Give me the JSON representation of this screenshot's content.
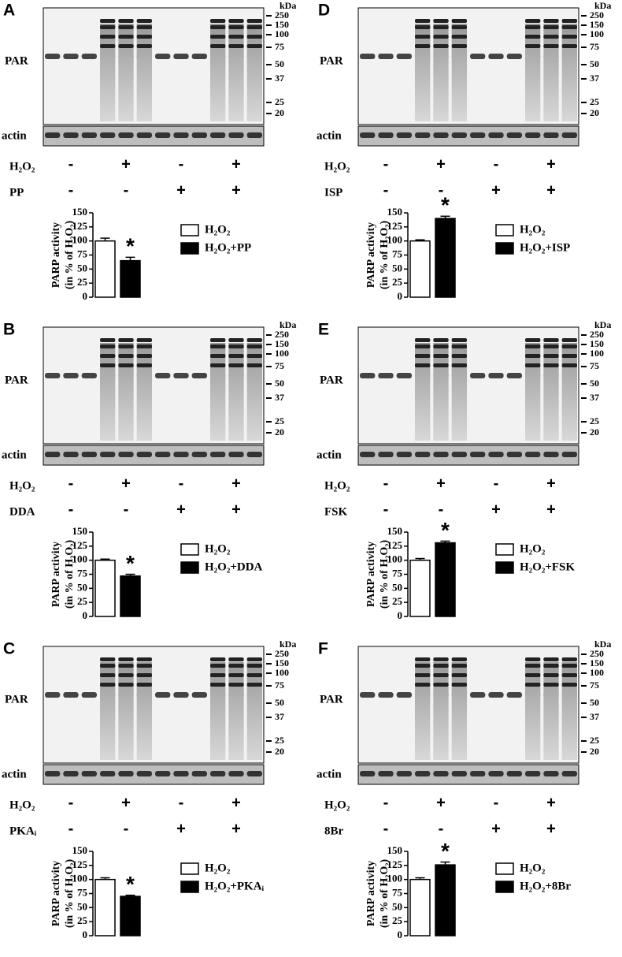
{
  "chart_data": [
    {
      "type": "bar",
      "categories": [
        null
      ],
      "series": [
        {
          "name": "H₂O₂",
          "color": "#ffffff",
          "values": [
            100
          ],
          "errors": [
            5
          ]
        },
        {
          "name": "H₂O₂+PP",
          "color": "#000000",
          "values": [
            65
          ],
          "errors": [
            6
          ]
        }
      ],
      "ylabel": [
        "PARP activity",
        "(in % of H₂O₂)"
      ],
      "ylim": [
        0,
        150
      ],
      "yticks": [
        0,
        25,
        50,
        75,
        100,
        125,
        150
      ],
      "annotations": [
        "*"
      ]
    },
    {
      "type": "bar",
      "categories": [
        null
      ],
      "series": [
        {
          "name": "H₂O₂",
          "color": "#ffffff",
          "values": [
            100
          ],
          "errors": [
            2
          ]
        },
        {
          "name": "H₂O₂+DDA",
          "color": "#000000",
          "values": [
            72
          ],
          "errors": [
            3
          ]
        }
      ],
      "ylabel": [
        "PARP activity",
        "(in % of H₂O₂)"
      ],
      "ylim": [
        0,
        150
      ],
      "yticks": [
        0,
        25,
        50,
        75,
        100,
        125,
        150
      ],
      "annotations": [
        "*"
      ]
    },
    {
      "type": "bar",
      "categories": [
        null
      ],
      "series": [
        {
          "name": "H₂O₂",
          "color": "#ffffff",
          "values": [
            100
          ],
          "errors": [
            3
          ]
        },
        {
          "name": "H₂O₂+PKAᵢ",
          "color": "#000000",
          "values": [
            70
          ],
          "errors": [
            2
          ]
        }
      ],
      "ylabel": [
        "PARP activity",
        "(in % of H₂O₂)"
      ],
      "ylim": [
        0,
        150
      ],
      "yticks": [
        0,
        25,
        50,
        75,
        100,
        125,
        150
      ],
      "annotations": [
        "*"
      ]
    },
    {
      "type": "bar",
      "categories": [
        null
      ],
      "series": [
        {
          "name": "H₂O₂",
          "color": "#ffffff",
          "values": [
            100
          ],
          "errors": [
            2
          ]
        },
        {
          "name": "H₂O₂+ISP",
          "color": "#000000",
          "values": [
            140
          ],
          "errors": [
            4
          ]
        }
      ],
      "ylabel": [
        "PARP activity",
        "(in % of H₂O₂)"
      ],
      "ylim": [
        0,
        150
      ],
      "yticks": [
        0,
        25,
        50,
        75,
        100,
        125,
        150
      ],
      "annotations": [
        "*"
      ]
    },
    {
      "type": "bar",
      "categories": [
        null
      ],
      "series": [
        {
          "name": "H₂O₂",
          "color": "#ffffff",
          "values": [
            100
          ],
          "errors": [
            3
          ]
        },
        {
          "name": "H₂O₂+FSK",
          "color": "#000000",
          "values": [
            131
          ],
          "errors": [
            3
          ]
        }
      ],
      "ylabel": [
        "PARP activity",
        "(in % of H₂O₂)"
      ],
      "ylim": [
        0,
        150
      ],
      "yticks": [
        0,
        25,
        50,
        75,
        100,
        125,
        150
      ],
      "annotations": [
        "*"
      ]
    },
    {
      "type": "bar",
      "categories": [
        null
      ],
      "series": [
        {
          "name": "H₂O₂",
          "color": "#ffffff",
          "values": [
            100
          ],
          "errors": [
            3
          ]
        },
        {
          "name": "H₂O₂+8Br",
          "color": "#000000",
          "values": [
            126
          ],
          "errors": [
            5
          ]
        }
      ],
      "ylabel": [
        "PARP activity",
        "(in % of H₂O₂)"
      ],
      "ylim": [
        0,
        150
      ],
      "yticks": [
        0,
        25,
        50,
        75,
        100,
        125,
        150
      ],
      "annotations": [
        "*"
      ]
    }
  ],
  "blots": [
    {
      "label": "A",
      "kda": "kDa",
      "markers": [
        250,
        150,
        100,
        75,
        50,
        37,
        25,
        20
      ],
      "rows": [
        "PAR",
        "actin"
      ],
      "treatments": [
        {
          "name": "H₂O₂",
          "signs": [
            "-",
            "+",
            "-",
            "+"
          ]
        },
        {
          "name": "PP",
          "signs": [
            "-",
            "-",
            "+",
            "+"
          ]
        }
      ]
    },
    {
      "label": "B",
      "kda": "kDa",
      "markers": [
        250,
        150,
        100,
        75,
        50,
        37,
        25,
        20
      ],
      "rows": [
        "PAR",
        "actin"
      ],
      "treatments": [
        {
          "name": "H₂O₂",
          "signs": [
            "-",
            "+",
            "-",
            "+"
          ]
        },
        {
          "name": "DDA",
          "signs": [
            "-",
            "-",
            "+",
            "+"
          ]
        }
      ]
    },
    {
      "label": "C",
      "kda": "kDa",
      "markers": [
        250,
        150,
        100,
        75,
        50,
        37,
        25,
        20
      ],
      "rows": [
        "PAR",
        "actin"
      ],
      "treatments": [
        {
          "name": "H₂O₂",
          "signs": [
            "-",
            "+",
            "-",
            "+"
          ]
        },
        {
          "name": "PKAᵢ",
          "signs": [
            "-",
            "-",
            "+",
            "+"
          ]
        }
      ]
    },
    {
      "label": "D",
      "kda": "kDa",
      "markers": [
        250,
        150,
        100,
        75,
        50,
        37,
        25,
        20
      ],
      "rows": [
        "PAR",
        "actin"
      ],
      "treatments": [
        {
          "name": "H₂O₂",
          "signs": [
            "-",
            "+",
            "-",
            "+"
          ]
        },
        {
          "name": "ISP",
          "signs": [
            "-",
            "-",
            "+",
            "+"
          ]
        }
      ]
    },
    {
      "label": "E",
      "kda": "kDa",
      "markers": [
        250,
        150,
        100,
        75,
        50,
        37,
        25,
        20
      ],
      "rows": [
        "PAR",
        "actin"
      ],
      "treatments": [
        {
          "name": "H₂O₂",
          "signs": [
            "-",
            "+",
            "-",
            "+"
          ]
        },
        {
          "name": "FSK",
          "signs": [
            "-",
            "-",
            "+",
            "+"
          ]
        }
      ]
    },
    {
      "label": "F",
      "kda": "kDa",
      "markers": [
        250,
        150,
        100,
        75,
        50,
        37,
        25,
        20
      ],
      "rows": [
        "PAR",
        "actin"
      ],
      "treatments": [
        {
          "name": "H₂O₂",
          "signs": [
            "-",
            "+",
            "-",
            "+"
          ]
        },
        {
          "name": "8Br",
          "signs": [
            "-",
            "-",
            "+",
            "+"
          ]
        }
      ]
    }
  ]
}
